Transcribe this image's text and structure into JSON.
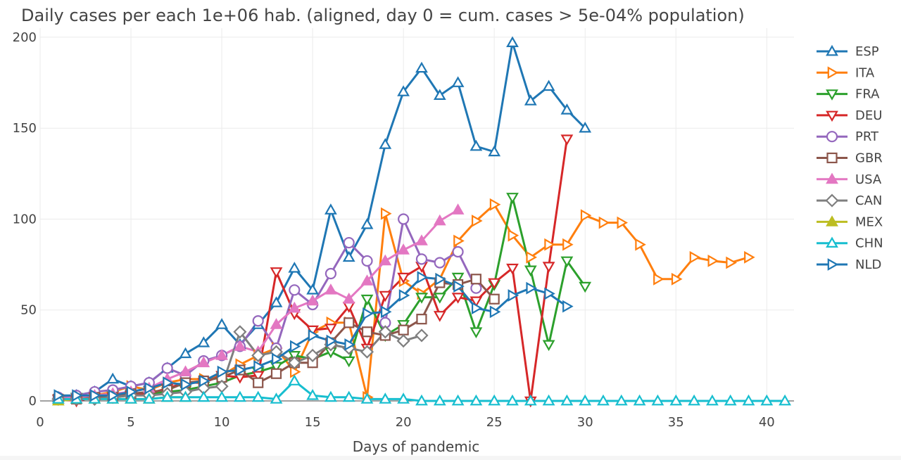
{
  "chart_data": {
    "type": "line",
    "title": "Daily cases per each 1e+06 hab. (aligned, day 0 = cum. cases > 5e-04% population)",
    "xlabel": "Days of pandemic",
    "ylabel": "",
    "xlim": [
      0,
      41.5
    ],
    "ylim": [
      0,
      205
    ],
    "xticks": [
      0,
      5,
      10,
      15,
      20,
      25,
      30,
      35,
      40
    ],
    "yticks": [
      0,
      50,
      100,
      150,
      200
    ],
    "grid": true,
    "legend_position": "right",
    "series": [
      {
        "name": "ESP",
        "color": "#1f77b4",
        "marker": "triangle-up-open",
        "x": [
          1,
          2,
          3,
          4,
          5,
          6,
          7,
          8,
          9,
          10,
          11,
          12,
          13,
          14,
          15,
          16,
          17,
          18,
          19,
          20,
          21,
          22,
          23,
          24,
          25,
          26,
          27,
          28,
          29,
          30
        ],
        "y": [
          2,
          3,
          5,
          12,
          8,
          10,
          18,
          26,
          32,
          42,
          31,
          42,
          54,
          73,
          61,
          105,
          79,
          97,
          141,
          170,
          183,
          168,
          175,
          140,
          137,
          197,
          165,
          173,
          160,
          150
        ]
      },
      {
        "name": "ITA",
        "color": "#ff7f0e",
        "marker": "triangle-right-open",
        "x": [
          1,
          2,
          3,
          4,
          5,
          6,
          7,
          8,
          9,
          10,
          11,
          12,
          13,
          14,
          15,
          16,
          17,
          18,
          19,
          20,
          21,
          22,
          23,
          24,
          25,
          26,
          27,
          28,
          29,
          30,
          31,
          32,
          33,
          34,
          35,
          36,
          37,
          38,
          39
        ],
        "y": [
          2,
          2,
          3,
          5,
          8,
          6,
          10,
          12,
          12,
          14,
          20,
          25,
          29,
          16,
          38,
          43,
          43,
          2,
          103,
          66,
          59,
          67,
          88,
          99,
          108,
          91,
          79,
          86,
          86,
          102,
          98,
          98,
          86,
          67,
          67,
          79,
          77,
          76,
          79
        ]
      },
      {
        "name": "FRA",
        "color": "#2ca02c",
        "marker": "triangle-down-open",
        "x": [
          1,
          2,
          3,
          4,
          5,
          6,
          7,
          8,
          9,
          10,
          11,
          12,
          13,
          14,
          15,
          16,
          17,
          18,
          19,
          20,
          21,
          22,
          23,
          24,
          25,
          26,
          27,
          28,
          29,
          30
        ],
        "y": [
          1,
          2,
          2,
          3,
          3,
          4,
          5,
          6,
          8,
          10,
          14,
          16,
          19,
          25,
          23,
          27,
          22,
          56,
          36,
          42,
          57,
          57,
          68,
          38,
          64,
          112,
          72,
          31,
          77,
          63
        ]
      },
      {
        "name": "DEU",
        "color": "#d62728",
        "marker": "triangle-down-open",
        "x": [
          1,
          2,
          3,
          4,
          5,
          6,
          7,
          8,
          9,
          10,
          11,
          12,
          13,
          14,
          15,
          16,
          17,
          18,
          19,
          20,
          21,
          22,
          23,
          24,
          25,
          26,
          27,
          28,
          29
        ],
        "y": [
          1,
          0,
          2,
          2,
          3,
          4,
          7,
          10,
          10,
          14,
          13,
          14,
          71,
          48,
          39,
          40,
          52,
          29,
          58,
          68,
          74,
          47,
          57,
          55,
          65,
          73,
          0,
          74,
          144
        ]
      },
      {
        "name": "PRT",
        "color": "#9467bd",
        "marker": "circle-open",
        "x": [
          1,
          2,
          3,
          4,
          5,
          6,
          7,
          8,
          9,
          10,
          11,
          12,
          13,
          14,
          15,
          16,
          17,
          18,
          19,
          20,
          21,
          22,
          23,
          24
        ],
        "y": [
          2,
          3,
          5,
          6,
          8,
          10,
          18,
          14,
          22,
          25,
          30,
          44,
          29,
          61,
          53,
          70,
          87,
          77,
          43,
          100,
          78,
          76,
          82,
          62
        ]
      },
      {
        "name": "GBR",
        "color": "#8c564b",
        "marker": "square-open",
        "x": [
          1,
          2,
          3,
          4,
          5,
          6,
          7,
          8,
          9,
          10,
          11,
          12,
          13,
          14,
          15,
          16,
          17,
          18,
          19,
          20,
          21,
          22,
          23,
          24,
          25
        ],
        "y": [
          1,
          1,
          2,
          2,
          4,
          5,
          6,
          10,
          11,
          13,
          17,
          10,
          15,
          21,
          21,
          32,
          43,
          38,
          36,
          39,
          45,
          65,
          64,
          67,
          56
        ]
      },
      {
        "name": "USA",
        "color": "#e377c2",
        "marker": "triangle-up",
        "x": [
          1,
          2,
          3,
          4,
          5,
          6,
          7,
          8,
          9,
          10,
          11,
          12,
          13,
          14,
          15,
          16,
          17,
          18,
          19,
          20,
          21,
          22,
          23
        ],
        "y": [
          1,
          2,
          3,
          4,
          5,
          7,
          12,
          16,
          21,
          25,
          30,
          27,
          42,
          51,
          55,
          61,
          56,
          66,
          77,
          83,
          88,
          99,
          105
        ]
      },
      {
        "name": "CAN",
        "color": "#7f7f7f",
        "marker": "diamond-open",
        "x": [
          1,
          2,
          3,
          4,
          5,
          6,
          7,
          8,
          9,
          10,
          11,
          12,
          13,
          14,
          15,
          16,
          17,
          18,
          19,
          20,
          21
        ],
        "y": [
          1,
          1,
          1,
          2,
          3,
          3,
          4,
          5,
          7,
          8,
          38,
          25,
          27,
          21,
          25,
          31,
          29,
          27,
          38,
          33,
          36
        ]
      },
      {
        "name": "MEX",
        "color": "#bcbd22",
        "marker": "triangle-up",
        "x": [
          1,
          2,
          3,
          4,
          5,
          6,
          7,
          8
        ],
        "y": [
          0,
          1,
          1,
          1,
          1,
          1,
          2,
          2
        ]
      },
      {
        "name": "CHN",
        "color": "#17becf",
        "marker": "triangle-up-open",
        "x": [
          1,
          2,
          3,
          4,
          5,
          6,
          7,
          8,
          9,
          10,
          11,
          12,
          13,
          14,
          15,
          16,
          17,
          18,
          19,
          20,
          21,
          22,
          23,
          24,
          25,
          26,
          27,
          28,
          29,
          30,
          31,
          32,
          33,
          34,
          35,
          36,
          37,
          38,
          39,
          40,
          41
        ],
        "y": [
          1,
          1,
          1,
          1,
          1,
          1,
          2,
          2,
          2,
          2,
          2,
          2,
          1,
          11,
          3,
          2,
          2,
          1,
          1,
          1,
          0,
          0,
          0,
          0,
          0,
          0,
          0,
          0,
          0,
          0,
          0,
          0,
          0,
          0,
          0,
          0,
          0,
          0,
          0,
          0,
          0
        ]
      },
      {
        "name": "NLD",
        "color": "#1f77b4",
        "marker": "triangle-right-open",
        "x": [
          1,
          2,
          3,
          4,
          5,
          6,
          7,
          8,
          9,
          10,
          11,
          12,
          13,
          14,
          15,
          16,
          17,
          18,
          19,
          20,
          21,
          22,
          23,
          24,
          25,
          26,
          27,
          28,
          29
        ],
        "y": [
          3,
          3,
          3,
          3,
          5,
          7,
          10,
          9,
          11,
          16,
          17,
          19,
          23,
          30,
          36,
          33,
          31,
          48,
          49,
          58,
          68,
          67,
          63,
          51,
          49,
          58,
          62,
          59,
          52
        ]
      }
    ]
  }
}
